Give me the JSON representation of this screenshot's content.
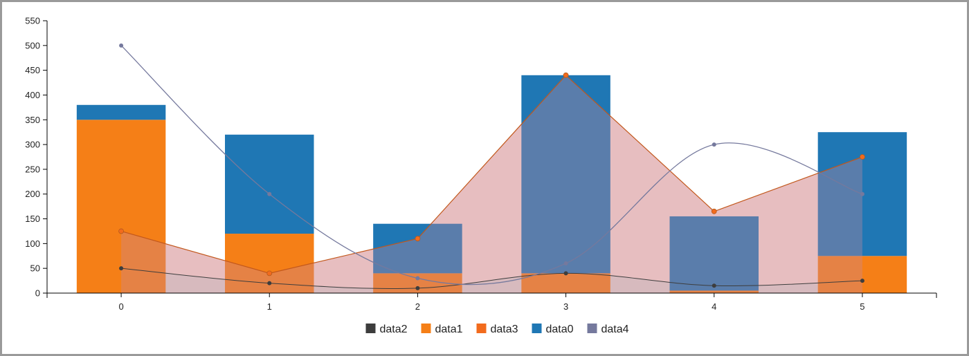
{
  "chart_data": {
    "type": "bar",
    "categories": [
      "0",
      "1",
      "2",
      "3",
      "4",
      "5"
    ],
    "ylim": [
      0,
      550
    ],
    "y_ticks": [
      0,
      50,
      100,
      150,
      200,
      250,
      300,
      350,
      400,
      450,
      500,
      550
    ],
    "legend_position": "bottom",
    "grid": false,
    "series": [
      {
        "name": "data2",
        "kind": "area-spline",
        "color": "#3d3d3d",
        "values": [
          50,
          20,
          10,
          40,
          15,
          25
        ]
      },
      {
        "name": "data1",
        "kind": "bar-stacked",
        "color": "#f57f17",
        "values": [
          350,
          120,
          40,
          40,
          5,
          75
        ]
      },
      {
        "name": "data3",
        "kind": "area-line",
        "color": "#f26b1d",
        "values": [
          125,
          40,
          110,
          440,
          165,
          275
        ]
      },
      {
        "name": "data0",
        "kind": "bar-stacked",
        "color": "#1f77b4",
        "values": [
          30,
          200,
          100,
          400,
          150,
          250
        ]
      },
      {
        "name": "data4",
        "kind": "spline",
        "color": "#75799d",
        "values": [
          500,
          200,
          30,
          60,
          300,
          200
        ]
      }
    ]
  }
}
